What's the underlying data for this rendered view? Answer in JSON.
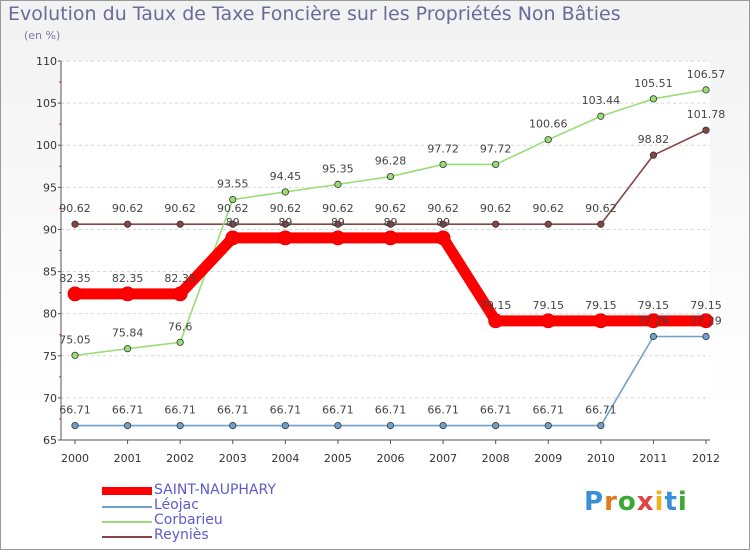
{
  "title": "Evolution du Taux de Taxe Foncière sur les Propriétés Non Bâties",
  "subtitle": "(en %)",
  "logo": {
    "letters": [
      "P",
      "r",
      "o",
      "x",
      "i",
      "t",
      "i"
    ],
    "colors": [
      "#3a8fd8",
      "#e07a1c",
      "#39a935",
      "#e04545",
      "#f0b21c",
      "#3a8fd8",
      "#39a935"
    ]
  },
  "chart_data": {
    "type": "line",
    "title": "Evolution du Taux de Taxe Foncière sur les Propriétés Non Bâties",
    "ylabel": "(en %)",
    "xlabel": "",
    "x": [
      "2000",
      "2001",
      "2002",
      "2003",
      "2004",
      "2005",
      "2006",
      "2007",
      "2008",
      "2009",
      "2010",
      "2011",
      "2012"
    ],
    "ylim": [
      65,
      110
    ],
    "yticks": [
      "65",
      "70",
      "75",
      "80",
      "85",
      "90",
      "95",
      "100",
      "105",
      "110"
    ],
    "legend_position": "bottom-left",
    "series": [
      {
        "name": "SAINT-NAUPHARY",
        "color": "#ff0000",
        "thick": true,
        "values": [
          82.35,
          82.35,
          82.35,
          89,
          89,
          89,
          89,
          89,
          79.15,
          79.15,
          79.15,
          79.15,
          79.15
        ],
        "labels": [
          "82.35",
          "82.35",
          "82.35",
          "89",
          "89",
          "89",
          "89",
          "89",
          "79.15",
          "79.15",
          "79.15",
          "79.15",
          "79.15"
        ]
      },
      {
        "name": "Léojac",
        "color": "#6fa0cc",
        "values": [
          66.71,
          66.71,
          66.71,
          66.71,
          66.71,
          66.71,
          66.71,
          66.71,
          66.71,
          66.71,
          66.71,
          77.29,
          77.29
        ],
        "labels": [
          "66.71",
          "66.71",
          "66.71",
          "66.71",
          "66.71",
          "66.71",
          "66.71",
          "66.71",
          "66.71",
          "66.71",
          "66.71",
          "77.29",
          "77.29"
        ]
      },
      {
        "name": "Corbarieu",
        "color": "#99dd77",
        "values": [
          75.05,
          75.84,
          76.6,
          93.55,
          94.45,
          95.35,
          96.28,
          97.72,
          97.72,
          100.66,
          103.44,
          105.51,
          106.57
        ],
        "labels": [
          "75.05",
          "75.84",
          "76.6",
          "93.55",
          "94.45",
          "95.35",
          "96.28",
          "97.72",
          "97.72",
          "100.66",
          "103.44",
          "105.51",
          "106.57"
        ]
      },
      {
        "name": "Reyniès",
        "color": "#884444",
        "values": [
          90.62,
          90.62,
          90.62,
          90.62,
          90.62,
          90.62,
          90.62,
          90.62,
          90.62,
          90.62,
          90.62,
          98.82,
          101.78
        ],
        "labels": [
          "90.62",
          "90.62",
          "90.62",
          "90.62",
          "90.62",
          "90.62",
          "90.62",
          "90.62",
          "90.62",
          "90.62",
          "90.62",
          "98.82",
          "101.78"
        ]
      }
    ]
  }
}
